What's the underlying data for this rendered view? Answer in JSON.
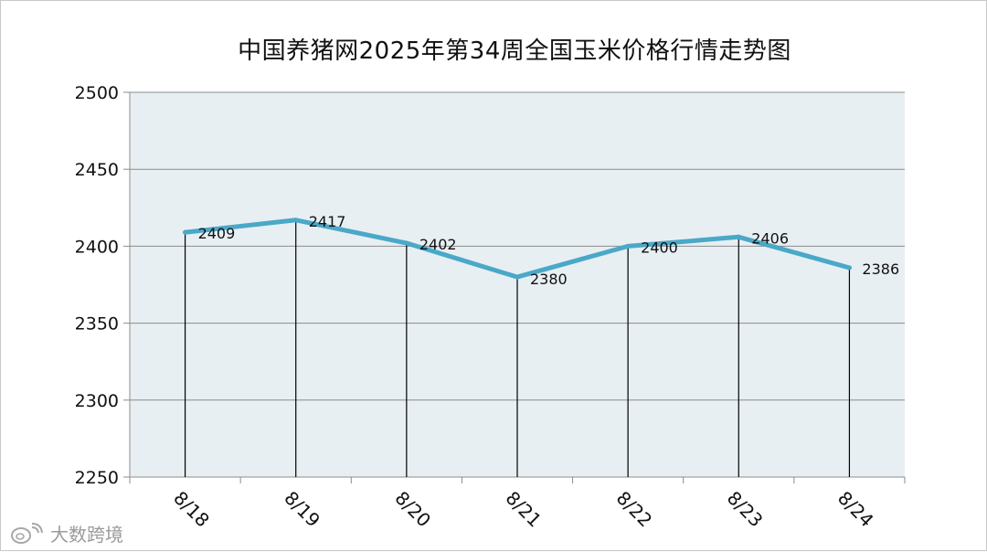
{
  "page": {
    "title": "中国养猪网2025年第34周全国玉米价格行情走势图",
    "watermark": "大数跨境"
  },
  "colors": {
    "line": "#4aa8c8",
    "plot_bg": "#e8eff3",
    "grid": "#8c8c8c",
    "drop_line": "#000000",
    "axis_text": "#111111"
  },
  "chart_data": {
    "type": "line",
    "title": "中国养猪网2025年第34周全国玉米价格行情走势图",
    "categories": [
      "8/18",
      "8/19",
      "8/20",
      "8/21",
      "8/22",
      "8/23",
      "8/24"
    ],
    "series": [
      {
        "values": [
          2409,
          2417,
          2402,
          2380,
          2400,
          2406,
          2386
        ]
      }
    ],
    "data_labels": [
      "2409",
      "2417",
      "2402",
      "2380",
      "2400",
      "2406",
      "2386"
    ],
    "ylim": [
      2250,
      2500
    ],
    "yticks": [
      2250,
      2300,
      2350,
      2400,
      2450,
      2500
    ],
    "xlabel": "",
    "ylabel": "",
    "grid": true,
    "drop_lines": true,
    "legend": "none"
  }
}
